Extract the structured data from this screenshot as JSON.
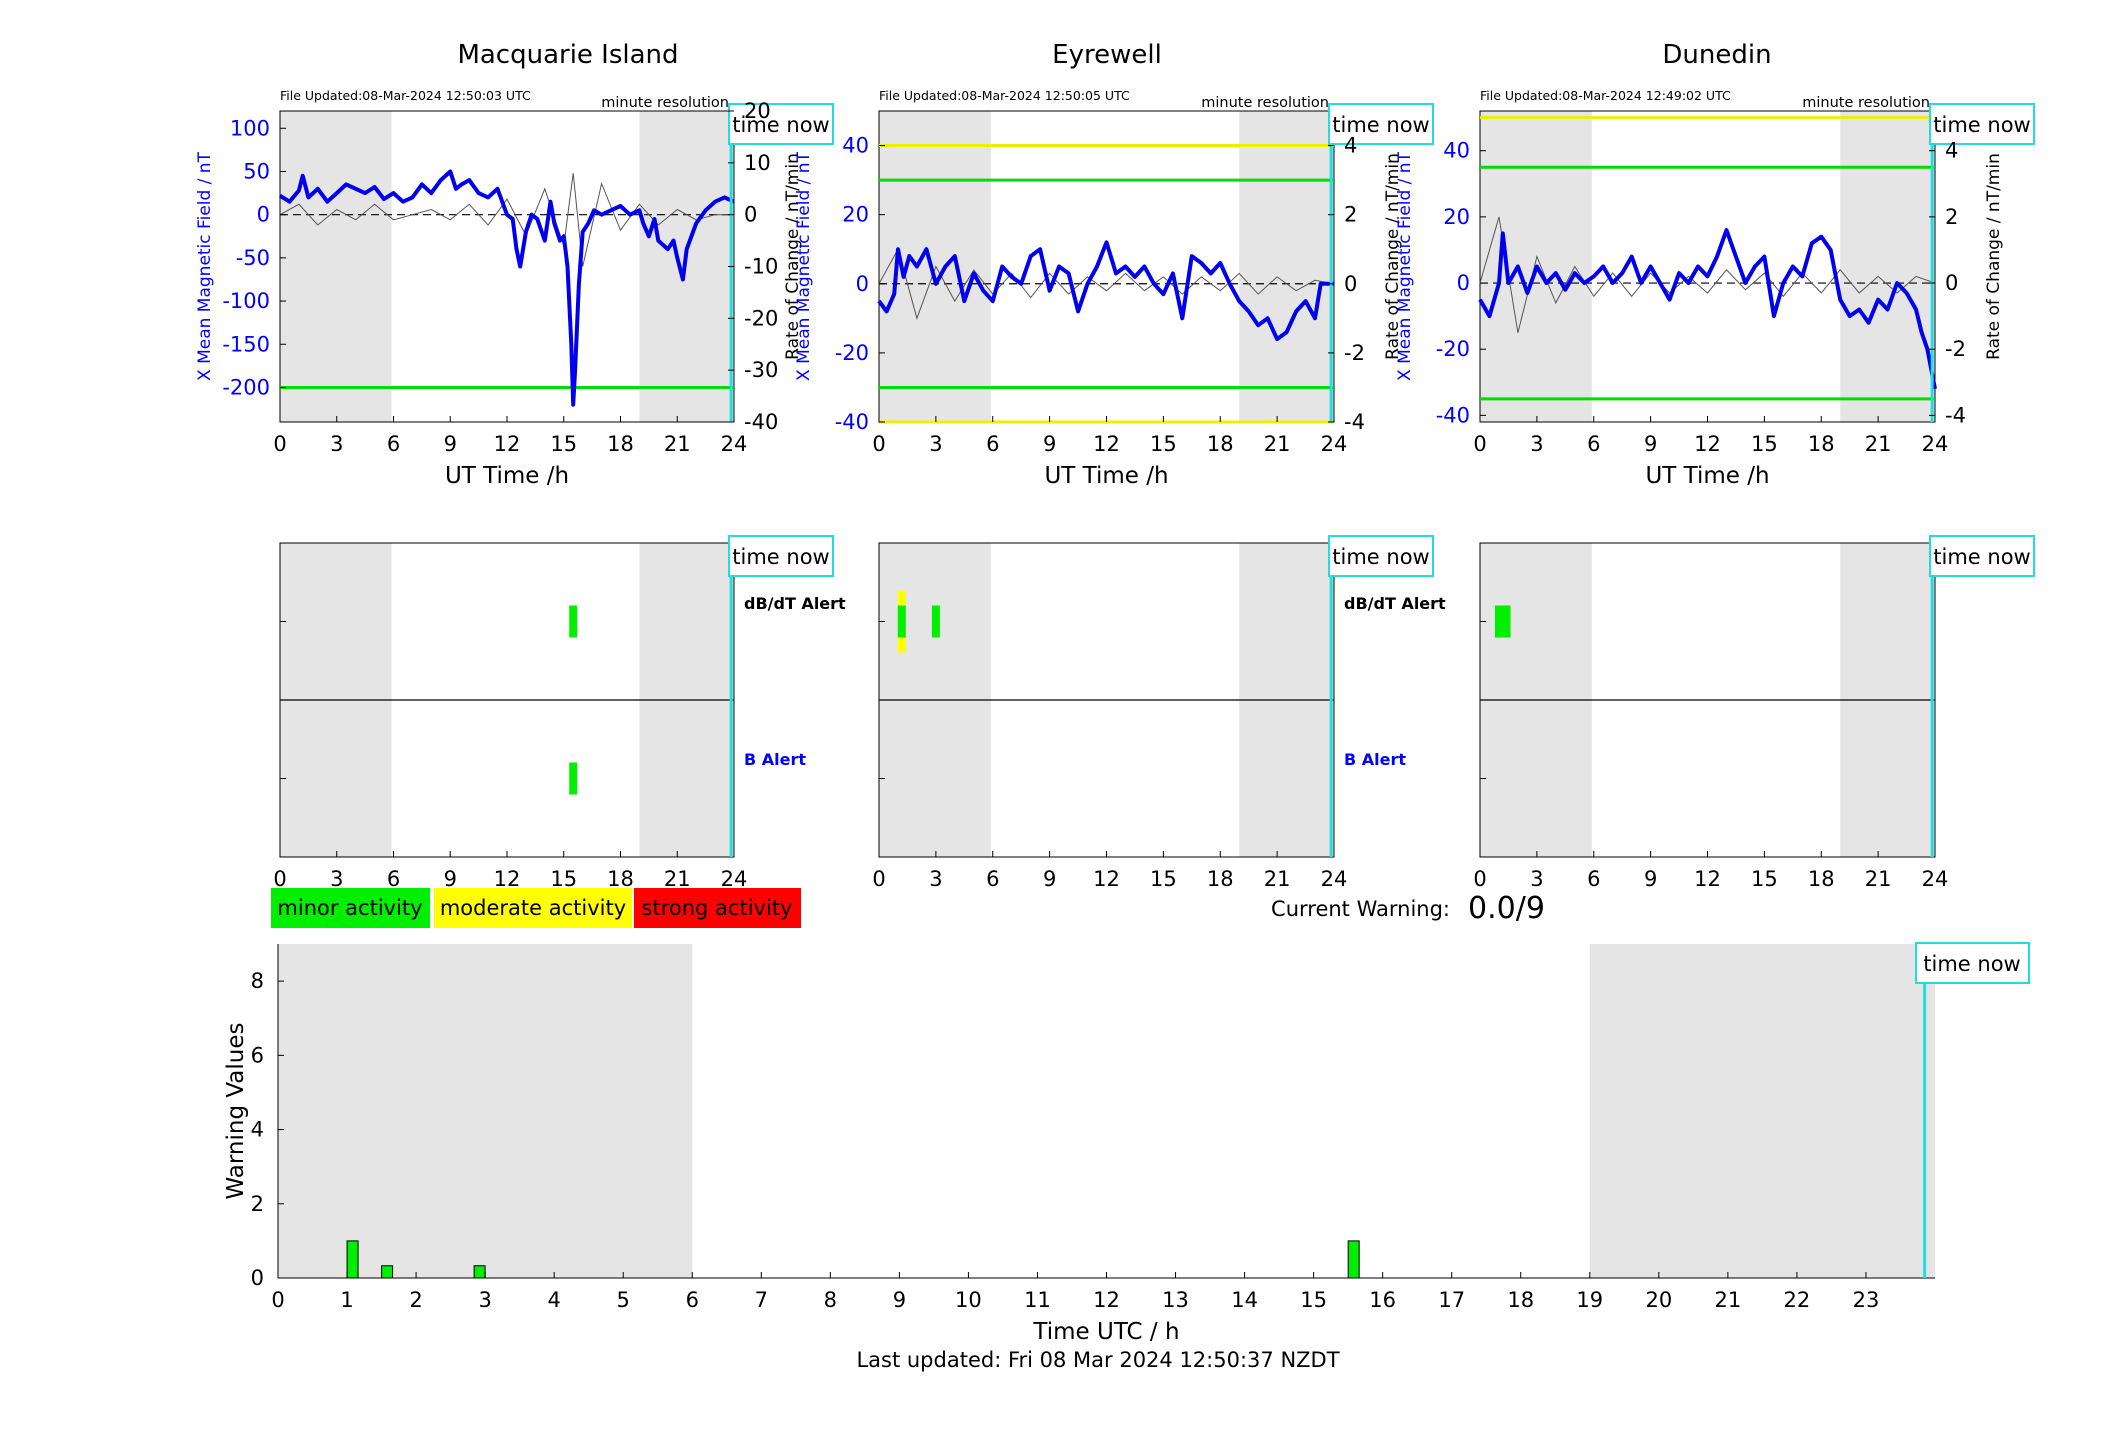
{
  "stations": [
    {
      "name": "Macquarie Island",
      "file_updated": "File Updated:08-Mar-2024 12:50:03 UTC",
      "resolution": "minute resolution",
      "time_now_label": "time now",
      "left_ylabel": "X Mean Magnetic Field / nT",
      "right_ylabel": "Rate of Change / nT/min",
      "xlabel": "UT Time /h",
      "alert_labels": {
        "dbdt": "dB/dT Alert",
        "b": "B Alert"
      }
    },
    {
      "name": "Eyrewell",
      "file_updated": "File Updated:08-Mar-2024 12:50:05 UTC",
      "resolution": "minute resolution",
      "time_now_label": "time now",
      "left_ylabel": "X Mean Magnetic Field / nT",
      "right_ylabel": "Rate of Change / nT/min",
      "xlabel": "UT Time /h",
      "alert_labels": {
        "dbdt": "dB/dT Alert",
        "b": "B Alert"
      }
    },
    {
      "name": "Dunedin",
      "file_updated": "File Updated:08-Mar-2024 12:49:02 UTC",
      "resolution": "minute resolution",
      "time_now_label": "time now",
      "left_ylabel": "X Mean Magnetic Field / nT",
      "right_ylabel": "Rate of Change / nT/min",
      "xlabel": "UT Time /h",
      "alert_labels": {
        "dbdt": "",
        "b": ""
      }
    }
  ],
  "legend": {
    "minor": "minor activity",
    "moderate": "moderate activity",
    "strong": "strong activity"
  },
  "current_warning": {
    "label": "Current Warning:",
    "value": "0.0/9"
  },
  "footer": "Last updated: Fri 08 Mar 2024 12:50:37 NZDT",
  "colors": {
    "field_line": "#0000ee",
    "rate_line": "#555555",
    "threshold_green": "#00dd00",
    "threshold_yellow": "#eeee00",
    "time_now": "#22dddd",
    "night_shade": "#e5e5e5",
    "minor": "#00ee00",
    "moderate": "#ffff00",
    "strong": "#ff0000",
    "axis_blue": "#0000ff"
  },
  "chart_data": [
    {
      "type": "line",
      "title": "Macquarie Island",
      "xlabel": "UT Time /h",
      "ylabel": "X Mean Magnetic Field / nT",
      "y2label": "Rate of Change / nT/min",
      "xlim": [
        0,
        24
      ],
      "xticks": [
        0,
        3,
        6,
        9,
        12,
        15,
        18,
        21,
        24
      ],
      "ylim": [
        -240,
        120
      ],
      "yticks": [
        -200,
        -150,
        -100,
        -50,
        0,
        50,
        100
      ],
      "y2lim": [
        -40,
        20
      ],
      "y2ticks": [
        -40,
        -30,
        -20,
        -10,
        0,
        10,
        20
      ],
      "night_shading_hours": [
        [
          0,
          5.9
        ],
        [
          19.0,
          24
        ]
      ],
      "thresholds_field": [
        {
          "y": -200,
          "color": "green"
        }
      ],
      "time_now_hour": 23.85,
      "series": [
        {
          "x": [
            0,
            0.5,
            1,
            1.2,
            1.5,
            2,
            2.5,
            3,
            3.5,
            4,
            4.5,
            5,
            5.5,
            6,
            6.5,
            7,
            7.5,
            8,
            8.5,
            9,
            9.3,
            9.6,
            10,
            10.5,
            11,
            11.5,
            12,
            12.3,
            12.5,
            12.7,
            13,
            13.3,
            13.6,
            14,
            14.3,
            14.5,
            14.8,
            15,
            15.2,
            15.4,
            15.5,
            15.6,
            15.8,
            16,
            16.3,
            16.6,
            17,
            17.5,
            18,
            18.5,
            19,
            19.2,
            19.5,
            19.8,
            20,
            20.5,
            20.8,
            21,
            21.3,
            21.5,
            22,
            22.5,
            23,
            23.5,
            24
          ],
          "y": [
            22,
            15,
            28,
            45,
            20,
            30,
            15,
            25,
            35,
            30,
            25,
            32,
            18,
            25,
            15,
            20,
            35,
            25,
            40,
            50,
            30,
            35,
            40,
            25,
            20,
            30,
            0,
            -5,
            -40,
            -60,
            -20,
            0,
            -5,
            -30,
            15,
            -10,
            -30,
            -25,
            -60,
            -150,
            -220,
            -180,
            -80,
            -20,
            -10,
            5,
            0,
            5,
            10,
            0,
            5,
            -10,
            -25,
            -5,
            -30,
            -40,
            -30,
            -50,
            -75,
            -40,
            -10,
            5,
            15,
            20,
            15
          ]
        },
        {
          "x": [
            0,
            1,
            2,
            3,
            4,
            5,
            6,
            7,
            8,
            9,
            10,
            11,
            12,
            13,
            14,
            15,
            15.5,
            16,
            17,
            18,
            19,
            20,
            21,
            22,
            23,
            24
          ],
          "y": [
            0,
            2,
            -2,
            1,
            -1,
            2,
            -1,
            0,
            1,
            -1,
            2,
            -2,
            3,
            -4,
            5,
            -6,
            8,
            -10,
            6,
            -3,
            2,
            -2,
            1,
            -1,
            0,
            0
          ],
          "axis": "right"
        }
      ]
    },
    {
      "type": "line",
      "title": "Eyrewell",
      "xlabel": "UT Time /h",
      "ylabel": "X Mean Magnetic Field / nT",
      "y2label": "Rate of Change / nT/min",
      "xlim": [
        0,
        24
      ],
      "xticks": [
        0,
        3,
        6,
        9,
        12,
        15,
        18,
        21,
        24
      ],
      "ylim": [
        -40,
        50
      ],
      "yticks": [
        -40,
        -20,
        0,
        20,
        40
      ],
      "y2lim": [
        -4,
        5
      ],
      "y2ticks": [
        -4,
        -2,
        0,
        2,
        4
      ],
      "night_shading_hours": [
        [
          0,
          5.9
        ],
        [
          19.0,
          24
        ]
      ],
      "thresholds_field": [
        {
          "y": 40,
          "color": "yellow"
        },
        {
          "y": 30,
          "color": "green"
        },
        {
          "y": -30,
          "color": "green"
        },
        {
          "y": -40,
          "color": "yellow"
        }
      ],
      "time_now_hour": 23.85,
      "series": [
        {
          "x": [
            0,
            0.4,
            0.8,
            1,
            1.3,
            1.6,
            2,
            2.5,
            3,
            3.5,
            4,
            4.5,
            5,
            5.5,
            6,
            6.5,
            7,
            7.5,
            8,
            8.5,
            9,
            9.5,
            10,
            10.5,
            11,
            11.5,
            12,
            12.5,
            13,
            13.5,
            14,
            14.5,
            15,
            15.5,
            16,
            16.5,
            17,
            17.5,
            18,
            18.5,
            19,
            19.5,
            20,
            20.5,
            21,
            21.5,
            22,
            22.5,
            23,
            23.3,
            23.5,
            24
          ],
          "y": [
            -5,
            -8,
            -3,
            10,
            2,
            8,
            5,
            10,
            0,
            5,
            8,
            -5,
            3,
            -2,
            -5,
            5,
            2,
            0,
            8,
            10,
            -2,
            5,
            3,
            -8,
            0,
            5,
            12,
            3,
            5,
            2,
            5,
            0,
            -3,
            3,
            -10,
            8,
            6,
            3,
            6,
            0,
            -5,
            -8,
            -12,
            -10,
            -16,
            -14,
            -8,
            -5,
            -10,
            0,
            0,
            0
          ]
        },
        {
          "x": [
            0,
            1,
            2,
            3,
            4,
            5,
            6,
            7,
            8,
            9,
            10,
            11,
            12,
            13,
            14,
            15,
            16,
            17,
            18,
            19,
            20,
            21,
            22,
            23,
            24
          ],
          "y": [
            0,
            1,
            -1,
            0.5,
            -0.5,
            0.4,
            -0.3,
            0.3,
            -0.4,
            0.3,
            -0.3,
            0.2,
            -0.2,
            0.3,
            -0.2,
            0.2,
            -0.3,
            0.2,
            -0.2,
            0.3,
            -0.3,
            0.2,
            -0.2,
            0.1,
            0
          ],
          "axis": "right"
        }
      ]
    },
    {
      "type": "line",
      "title": "Dunedin",
      "xlabel": "UT Time /h",
      "ylabel": "X Mean Magnetic Field / nT",
      "y2label": "Rate of Change / nT/min",
      "xlim": [
        0,
        24
      ],
      "xticks": [
        0,
        3,
        6,
        9,
        12,
        15,
        18,
        21,
        24
      ],
      "ylim": [
        -42,
        52
      ],
      "yticks": [
        -40,
        -20,
        0,
        20,
        40
      ],
      "y2lim": [
        -4.2,
        5.2
      ],
      "y2ticks": [
        -4,
        -2,
        0,
        2,
        4
      ],
      "night_shading_hours": [
        [
          0,
          5.9
        ],
        [
          19.0,
          24
        ]
      ],
      "thresholds_field": [
        {
          "y": 50,
          "color": "yellow"
        },
        {
          "y": 35,
          "color": "green"
        },
        {
          "y": -35,
          "color": "green"
        }
      ],
      "time_now_hour": 23.85,
      "series": [
        {
          "x": [
            0,
            0.5,
            1,
            1.2,
            1.5,
            2,
            2.5,
            3,
            3.5,
            4,
            4.5,
            5,
            5.5,
            6,
            6.5,
            7,
            7.5,
            8,
            8.5,
            9,
            9.5,
            10,
            10.5,
            11,
            11.5,
            12,
            12.5,
            13,
            13.5,
            14,
            14.5,
            15,
            15.5,
            16,
            16.5,
            17,
            17.5,
            18,
            18.5,
            19,
            19.5,
            20,
            20.5,
            21,
            21.5,
            22,
            22.5,
            23,
            23.3,
            23.6,
            24
          ],
          "y": [
            -5,
            -10,
            0,
            15,
            0,
            5,
            -3,
            5,
            0,
            3,
            -2,
            3,
            0,
            2,
            5,
            0,
            3,
            8,
            0,
            5,
            0,
            -5,
            3,
            0,
            5,
            2,
            8,
            16,
            8,
            0,
            5,
            8,
            -10,
            0,
            5,
            2,
            12,
            14,
            10,
            -5,
            -10,
            -8,
            -12,
            -5,
            -8,
            0,
            -3,
            -8,
            -15,
            -20,
            -32
          ]
        },
        {
          "x": [
            0,
            1,
            2,
            3,
            4,
            5,
            6,
            7,
            8,
            9,
            10,
            11,
            12,
            13,
            14,
            15,
            16,
            17,
            18,
            19,
            20,
            21,
            22,
            23,
            24
          ],
          "y": [
            0,
            2,
            -1.5,
            0.8,
            -0.6,
            0.5,
            -0.4,
            0.3,
            -0.4,
            0.3,
            -0.3,
            0.2,
            -0.3,
            0.4,
            -0.2,
            0.3,
            -0.4,
            0.3,
            -0.3,
            0.4,
            -0.3,
            0.2,
            -0.3,
            0.2,
            0
          ],
          "axis": "right"
        }
      ]
    },
    {
      "type": "bar",
      "title": "",
      "xlabel": "Time UTC / h",
      "ylabel": "Warning Values",
      "xlim": [
        0,
        24
      ],
      "xticks": [
        0,
        1,
        2,
        3,
        4,
        5,
        6,
        7,
        8,
        9,
        10,
        11,
        12,
        13,
        14,
        15,
        16,
        17,
        18,
        19,
        20,
        21,
        22,
        23
      ],
      "ylim": [
        0,
        9
      ],
      "yticks": [
        0,
        2,
        4,
        6,
        8
      ],
      "night_shading_hours": [
        [
          0,
          6.0
        ],
        [
          19.0,
          24
        ]
      ],
      "time_now_hour": 23.85,
      "series": [
        {
          "name": "",
          "x": [
            1.08,
            1.58,
            2.92,
            15.58
          ],
          "values": [
            1,
            0.33,
            0.33,
            1
          ]
        }
      ]
    }
  ],
  "alert_data": [
    {
      "dbdt": [
        {
          "hour": 15.5,
          "level": "minor"
        }
      ],
      "b": [
        {
          "hour": 15.5,
          "level": "minor"
        }
      ]
    },
    {
      "dbdt": [
        {
          "hour": 1.2,
          "level": "moderate"
        },
        {
          "hour": 1.2,
          "level": "minor"
        },
        {
          "hour": 3.0,
          "level": "minor"
        }
      ],
      "b": []
    },
    {
      "dbdt": [
        {
          "hour": 1.0,
          "level": "minor"
        },
        {
          "hour": 1.4,
          "level": "minor"
        }
      ],
      "b": []
    }
  ]
}
